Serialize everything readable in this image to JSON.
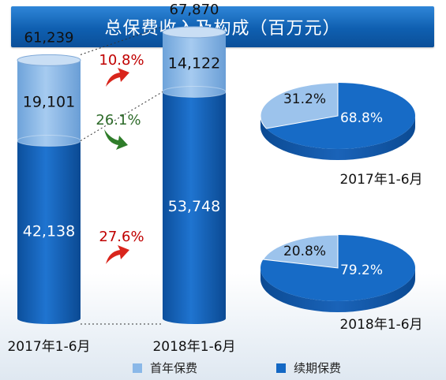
{
  "title": "总保费收入及构成（百万元）",
  "colors": {
    "first_year": "#8ab8e8",
    "renewal": "#1468c4",
    "up_arrow": "#d9251c",
    "down_arrow": "#2f7d2a",
    "growth_red": "#c00000",
    "growth_green": "#2e6b2a"
  },
  "chart_data": [
    {
      "type": "bar",
      "stacked": true,
      "title": "总保费收入及构成（百万元）",
      "categories": [
        "2017年1-6月",
        "2018年1-6月"
      ],
      "series": [
        {
          "name": "续期保费",
          "values": [
            42138,
            53748
          ],
          "labels": [
            "42,138",
            "53,748"
          ]
        },
        {
          "name": "首年保费",
          "values": [
            19101,
            14122
          ],
          "labels": [
            "19,101",
            "14,122"
          ]
        }
      ],
      "totals": [
        61239,
        67870
      ],
      "total_labels": [
        "61,239",
        "67,870"
      ],
      "growth": [
        {
          "label": "10.8%",
          "target": "total",
          "direction": "up"
        },
        {
          "label": "26.1%",
          "target": "首年保费",
          "direction": "down"
        },
        {
          "label": "27.6%",
          "target": "续期保费",
          "direction": "up"
        }
      ],
      "legend": [
        "首年保费",
        "续期保费"
      ],
      "legend_position": "bottom",
      "grid": false
    },
    {
      "type": "pie",
      "label": "2017年1-6月",
      "slices": [
        {
          "name": "首年保费",
          "value": 31.2,
          "label": "31.2%"
        },
        {
          "name": "续期保费",
          "value": 68.8,
          "label": "68.8%"
        }
      ]
    },
    {
      "type": "pie",
      "label": "2018年1-6月",
      "slices": [
        {
          "name": "首年保费",
          "value": 20.8,
          "label": "20.8%"
        },
        {
          "name": "续期保费",
          "value": 79.2,
          "label": "79.2%"
        }
      ]
    }
  ]
}
